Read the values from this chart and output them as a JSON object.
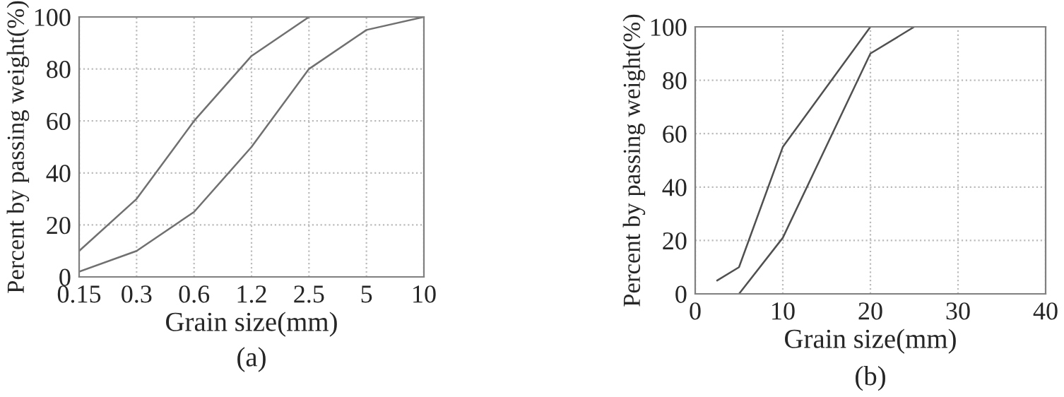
{
  "chart_data": [
    {
      "type": "line",
      "title": "(a)",
      "xlabel": "Grain size(mm)",
      "ylabel": "Percent by passing weight(%)",
      "categories": [
        "0.15",
        "0.3",
        "0.6",
        "1.2",
        "2.5",
        "5",
        "10"
      ],
      "ylim": [
        0,
        100
      ],
      "yticks": [
        0,
        20,
        40,
        60,
        80,
        100
      ],
      "grid": true,
      "series": [
        {
          "color": "#707070",
          "values": [
            10,
            30,
            60,
            85,
            100,
            null,
            null
          ]
        },
        {
          "color": "#707070",
          "values": [
            2,
            10,
            25,
            50,
            80,
            95,
            100
          ]
        }
      ]
    },
    {
      "type": "line",
      "title": "(b)",
      "xlabel": "Grain size(mm)",
      "ylabel": "Percent by passing weight(%)",
      "xlim": [
        0,
        40
      ],
      "xticks": [
        0,
        10,
        20,
        30,
        40
      ],
      "ylim": [
        0,
        100
      ],
      "yticks": [
        0,
        20,
        40,
        60,
        80,
        100
      ],
      "grid": true,
      "series": [
        {
          "color": "#505050",
          "x": [
            2.5,
            5,
            10,
            20
          ],
          "values": [
            5,
            10,
            55,
            100
          ]
        },
        {
          "color": "#505050",
          "x": [
            5,
            10,
            20,
            25
          ],
          "values": [
            0,
            21,
            90,
            100
          ]
        }
      ]
    }
  ]
}
